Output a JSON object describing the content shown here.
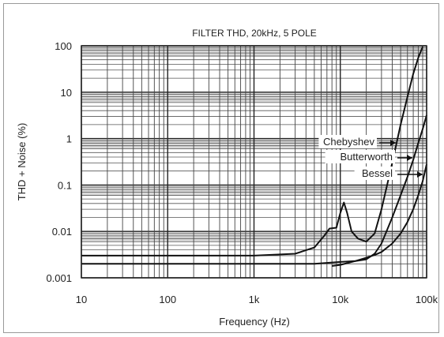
{
  "chart_data": {
    "type": "line",
    "title": "FILTER THD, 20kHz, 5 POLE",
    "xlabel": "Frequency (Hz)",
    "ylabel": "THD + Noise (%)",
    "xscale": "log",
    "yscale": "log",
    "xlim": [
      10,
      100000
    ],
    "ylim": [
      0.001,
      100
    ],
    "grid": true,
    "xticks": [
      {
        "value": 10,
        "label": "10"
      },
      {
        "value": 100,
        "label": "100"
      },
      {
        "value": 1000,
        "label": "1k"
      },
      {
        "value": 10000,
        "label": "10k"
      },
      {
        "value": 100000,
        "label": "100k"
      }
    ],
    "yticks": [
      {
        "value": 100,
        "label": "100"
      },
      {
        "value": 10,
        "label": "10"
      },
      {
        "value": 1,
        "label": "1"
      },
      {
        "value": 0.1,
        "label": "0.1"
      },
      {
        "value": 0.01,
        "label": "0.01"
      },
      {
        "value": 0.001,
        "label": "0.001"
      }
    ],
    "series": [
      {
        "name": "Chebyshev",
        "x": [
          10,
          100,
          1000,
          3000,
          5000,
          6500,
          7500,
          9000,
          10000,
          11000,
          12000,
          13500,
          16000,
          20000,
          25000,
          30000,
          40000,
          50000,
          60000,
          70000,
          80000,
          90000
        ],
        "y": [
          0.003,
          0.003,
          0.003,
          0.0033,
          0.0045,
          0.008,
          0.0115,
          0.012,
          0.025,
          0.042,
          0.025,
          0.01,
          0.007,
          0.006,
          0.009,
          0.03,
          0.3,
          2,
          8,
          25,
          55,
          95
        ]
      },
      {
        "name": "Butterworth",
        "x": [
          10,
          100,
          1000,
          5000,
          10000,
          15000,
          20000,
          25000,
          30000,
          40000,
          50000,
          60000,
          70000,
          80000,
          90000,
          100000
        ],
        "y": [
          0.002,
          0.002,
          0.002,
          0.002,
          0.0022,
          0.0023,
          0.0025,
          0.0033,
          0.0055,
          0.02,
          0.06,
          0.15,
          0.35,
          0.8,
          1.6,
          3.2
        ]
      },
      {
        "name": "Bessel",
        "x": [
          8000,
          10000,
          15000,
          20000,
          25000,
          30000,
          40000,
          50000,
          60000,
          70000,
          80000,
          90000,
          100000
        ],
        "y": [
          0.0018,
          0.0019,
          0.0023,
          0.0027,
          0.0031,
          0.0036,
          0.0055,
          0.009,
          0.016,
          0.03,
          0.06,
          0.12,
          0.28
        ]
      }
    ]
  }
}
